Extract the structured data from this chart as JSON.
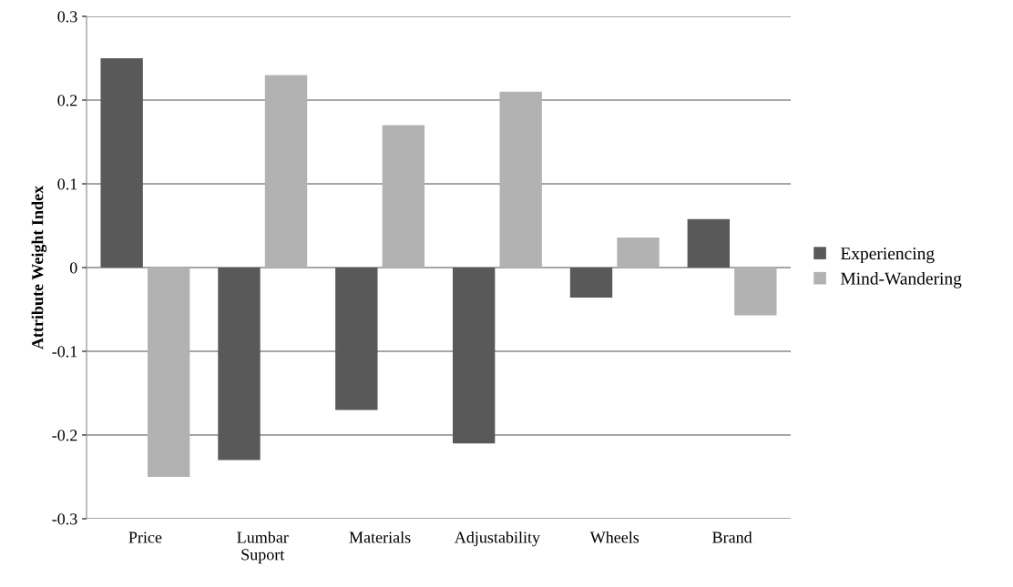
{
  "chart_data": {
    "type": "bar",
    "ylabel": "Attribute Weight Index",
    "categories": [
      "Price",
      "Lumbar\nSuport",
      "Materials",
      "Adjustability",
      "Wheels",
      "Brand"
    ],
    "series": [
      {
        "name": "Experiencing",
        "color": "#595959",
        "values": [
          0.25,
          -0.23,
          -0.17,
          -0.21,
          -0.036,
          0.058
        ]
      },
      {
        "name": "Mind-Wandering",
        "color": "#b2b2b2",
        "values": [
          -0.25,
          0.23,
          0.17,
          0.21,
          0.036,
          -0.057
        ]
      }
    ],
    "ylim": [
      -0.3,
      0.3
    ],
    "yticks": [
      {
        "value": -0.3,
        "label": "-0.3"
      },
      {
        "value": -0.2,
        "label": "-0.2"
      },
      {
        "value": -0.1,
        "label": "-0.1"
      },
      0,
      0.1,
      0.2,
      0.3
    ],
    "grid": "y",
    "legend": "right"
  }
}
